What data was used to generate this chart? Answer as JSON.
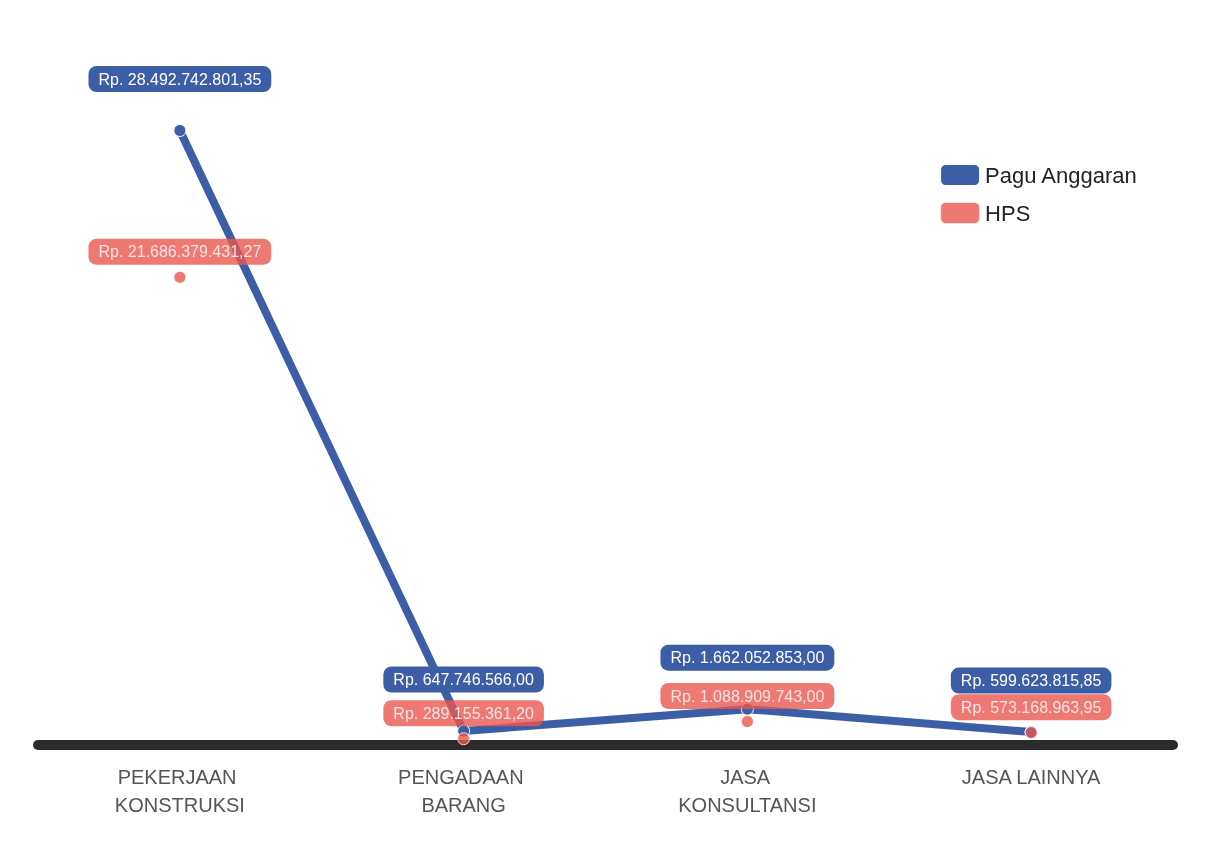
{
  "chart_data": {
    "type": "line",
    "categories": [
      "PEKERJAAN KONSTRUKSI",
      "PENGADAAN BARANG",
      "JASA KONSULTANSI",
      "JASA LAINNYA"
    ],
    "series": [
      {
        "name": "Pagu Anggaran",
        "color": "#3c5ea6",
        "values": [
          28492742801.35,
          647746566.0,
          1662052853.0,
          599623815.85
        ],
        "value_labels": [
          "Rp. 28.492.742.801,35",
          "Rp. 647.746.566,00",
          "Rp. 1.662.052.853,00",
          "Rp. 599.623.815,85"
        ]
      },
      {
        "name": "HPS",
        "type": "scatter",
        "color": "#e9574f",
        "values": [
          21686379431.27,
          289155361.2,
          1088909743.0,
          573168963.95
        ],
        "value_labels": [
          "Rp. 21.686.379.431,27",
          "Rp. 289.155.361,20",
          "Rp. 1.088.909.743,00",
          "Rp. 573.168.963,95"
        ]
      }
    ],
    "legend": "top right",
    "marker": "circle"
  }
}
